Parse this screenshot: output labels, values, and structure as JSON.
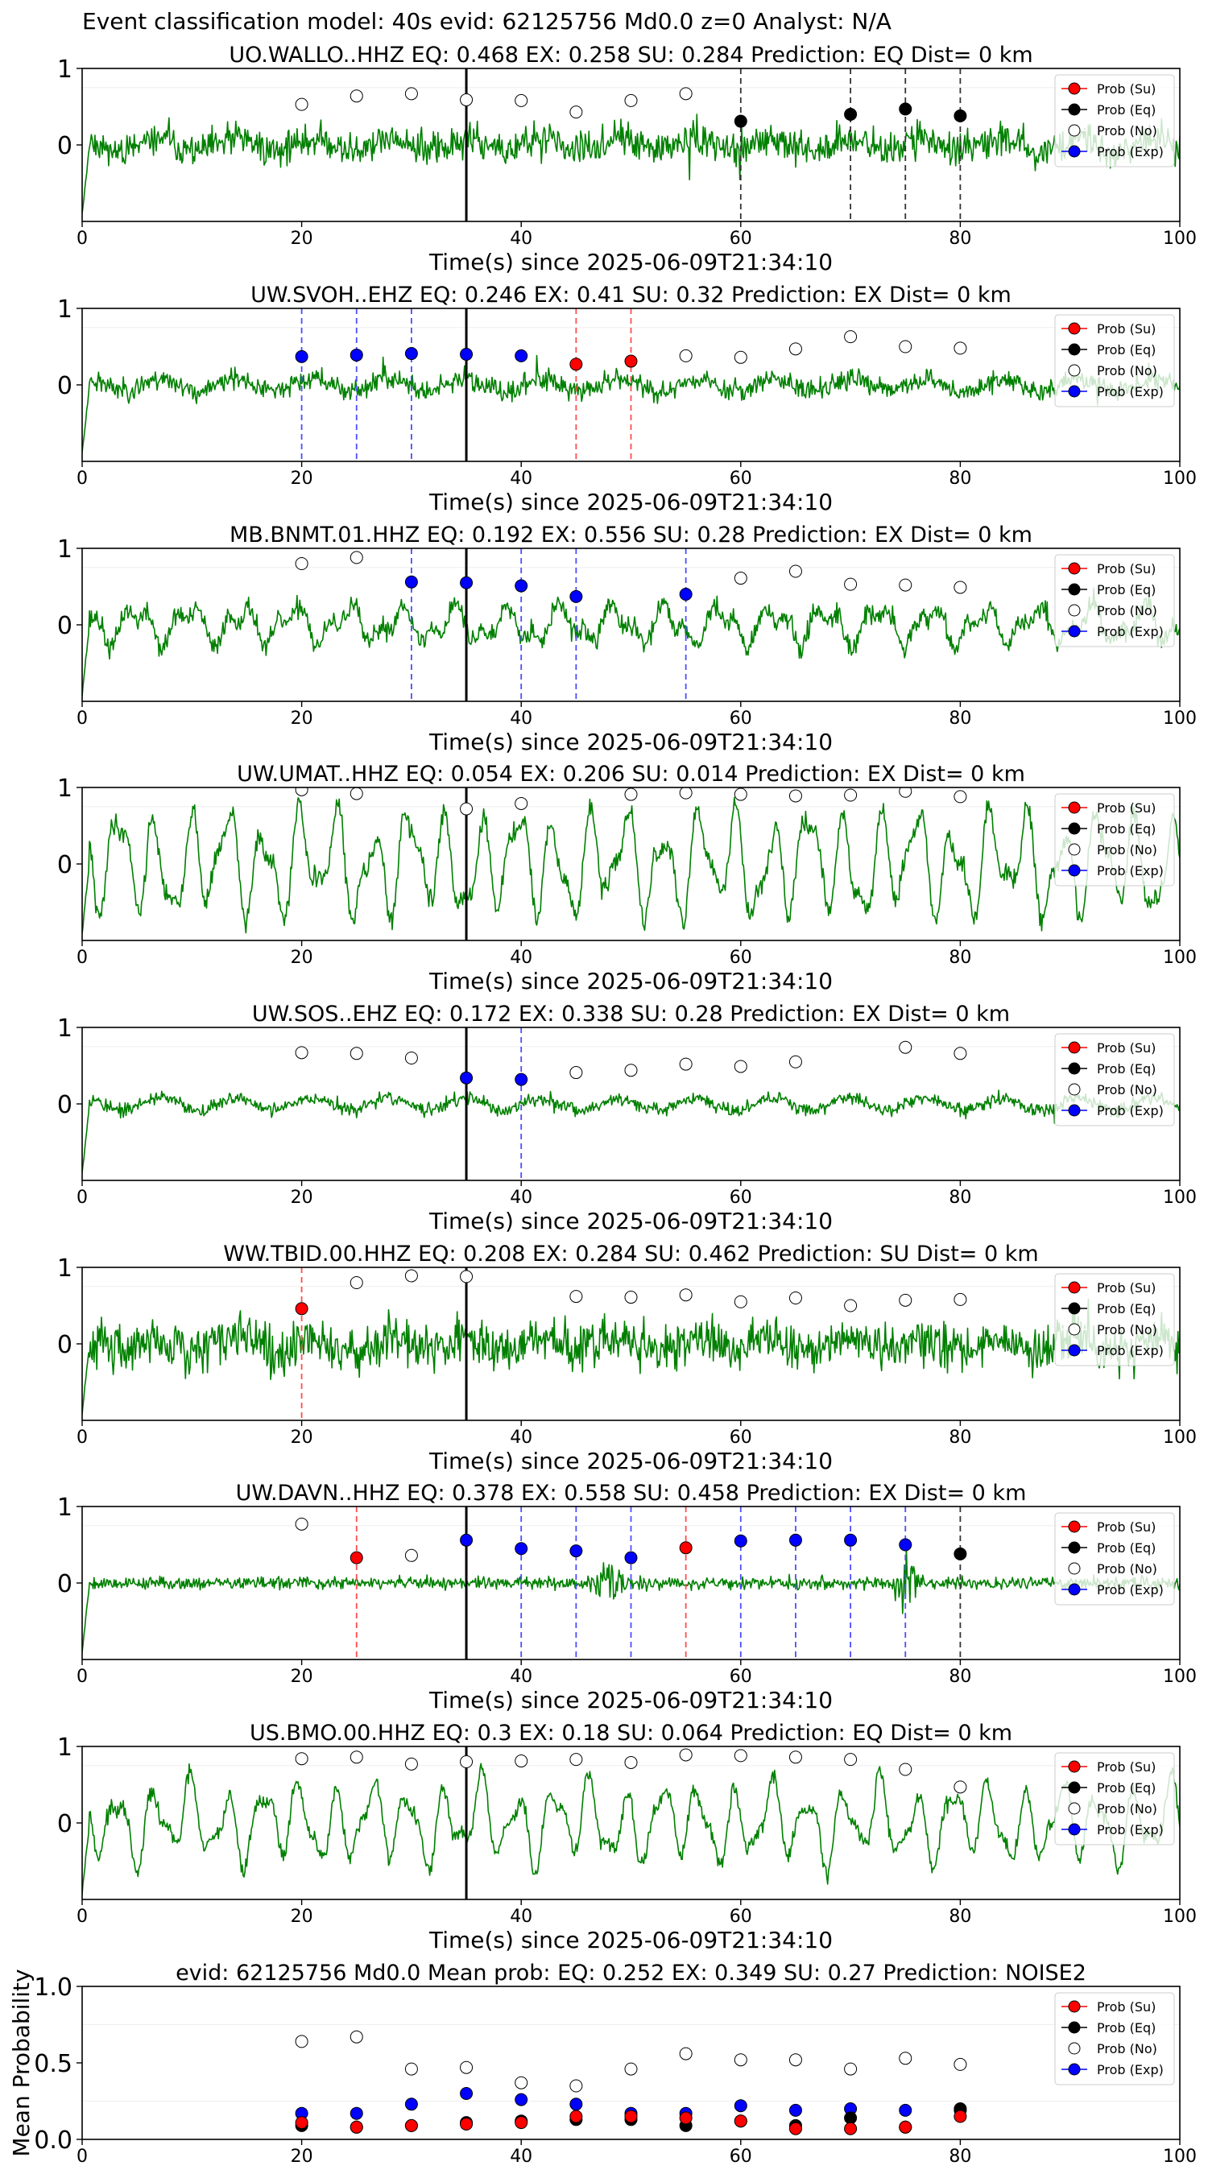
{
  "suptitle": "Event classification model: 40s evid: 62125756 Md0.0 z=0 Analyst: N/A",
  "colors": {
    "waveform": "#008000",
    "su": "#ff0000",
    "eq": "#000000",
    "no": "#ffffff",
    "exp": "#0000ff",
    "su_line": "#ff4d4d",
    "eq_line": "#333333",
    "exp_line": "#4d4dff",
    "pick_line": "#000000"
  },
  "legend_labels": [
    "Prob (Su)",
    "Prob (Eq)",
    "Prob (No)",
    "Prob (Exp)"
  ],
  "chart_data": [
    {
      "type": "scatter",
      "title": "UO.WALLO..HHZ   EQ: 0.468  EX: 0.258  SU: 0.284   Prediction: EQ    Dist= 0 km",
      "xlabel": "Time(s) since 2025-06-09T21:34:10",
      "ylabel": "",
      "xlim": [
        0,
        100
      ],
      "ylim": [
        -1,
        1
      ],
      "xticks": [
        "0",
        "20",
        "40",
        "60",
        "80",
        "100"
      ],
      "yticks": [
        "0",
        "1"
      ],
      "legend_position": "right",
      "pick_time": 35,
      "waveform": {
        "style": "noisy",
        "amplitude": 0.33,
        "seed": 11
      },
      "series": [
        {
          "key": "no",
          "x": [
            20,
            25,
            30,
            35,
            40,
            45,
            50,
            55
          ],
          "y": [
            0.53,
            0.64,
            0.67,
            0.59,
            0.58,
            0.43,
            0.58,
            0.67
          ]
        },
        {
          "key": "eq",
          "x": [
            60,
            70,
            75,
            80
          ],
          "y": [
            0.31,
            0.4,
            0.47,
            0.38
          ]
        }
      ],
      "vlines": [
        {
          "key": "eq",
          "x": [
            60,
            70,
            75,
            80
          ]
        }
      ]
    },
    {
      "type": "scatter",
      "title": "UW.SVOH..EHZ   EQ: 0.246  EX: 0.41  SU: 0.32   Prediction: EX    Dist= 0 km",
      "xlabel": "Time(s) since 2025-06-09T21:34:10",
      "ylabel": "",
      "xlim": [
        0,
        100
      ],
      "ylim": [
        -1,
        1
      ],
      "xticks": [
        "0",
        "20",
        "40",
        "60",
        "80",
        "100"
      ],
      "yticks": [
        "0",
        "1"
      ],
      "legend_position": "right",
      "pick_time": 35,
      "waveform": {
        "style": "noisy",
        "amplitude": 0.2,
        "seed": 23
      },
      "series": [
        {
          "key": "exp",
          "x": [
            20,
            25,
            30,
            35,
            40
          ],
          "y": [
            0.37,
            0.39,
            0.41,
            0.4,
            0.38
          ]
        },
        {
          "key": "su",
          "x": [
            45,
            50
          ],
          "y": [
            0.27,
            0.31
          ]
        },
        {
          "key": "no",
          "x": [
            55,
            60,
            65,
            70,
            75,
            80
          ],
          "y": [
            0.38,
            0.36,
            0.47,
            0.63,
            0.5,
            0.48
          ]
        }
      ],
      "vlines": [
        {
          "key": "exp",
          "x": [
            20,
            25,
            30
          ]
        },
        {
          "key": "su",
          "x": [
            45,
            50
          ]
        }
      ]
    },
    {
      "type": "scatter",
      "title": "MB.BNMT.01.HHZ   EQ: 0.192  EX: 0.556  SU: 0.28   Prediction: EX    Dist= 0 km",
      "xlabel": "Time(s) since 2025-06-09T21:34:10",
      "ylabel": "",
      "xlim": [
        0,
        100
      ],
      "ylim": [
        -1,
        1
      ],
      "xticks": [
        "0",
        "20",
        "40",
        "60",
        "80",
        "100"
      ],
      "yticks": [
        "0",
        "1"
      ],
      "legend_position": "right",
      "pick_time": 35,
      "waveform": {
        "style": "mixed",
        "amplitude": 0.35,
        "seed": 37
      },
      "series": [
        {
          "key": "no",
          "x": [
            20,
            25,
            60,
            65,
            70,
            75,
            80
          ],
          "y": [
            0.8,
            0.88,
            0.61,
            0.7,
            0.53,
            0.52,
            0.49
          ]
        },
        {
          "key": "exp",
          "x": [
            30,
            35,
            40,
            45,
            55
          ],
          "y": [
            0.56,
            0.55,
            0.51,
            0.37,
            0.4
          ]
        }
      ],
      "vlines": [
        {
          "key": "exp",
          "x": [
            30,
            40,
            45,
            55
          ]
        }
      ]
    },
    {
      "type": "scatter",
      "title": "UW.UMAT..HHZ   EQ: 0.054  EX: 0.206  SU: 0.014   Prediction: EX    Dist= 0 km",
      "xlabel": "Time(s) since 2025-06-09T21:34:10",
      "ylabel": "",
      "xlim": [
        0,
        100
      ],
      "ylim": [
        -1,
        1
      ],
      "xticks": [
        "0",
        "20",
        "40",
        "60",
        "80",
        "100"
      ],
      "yticks": [
        "0",
        "1"
      ],
      "legend_position": "right",
      "pick_time": 35,
      "waveform": {
        "style": "ocean",
        "amplitude": 0.8,
        "seed": 41
      },
      "series": [
        {
          "key": "no",
          "x": [
            20,
            25,
            35,
            40,
            50,
            55,
            60,
            65,
            70,
            75,
            80
          ],
          "y": [
            0.97,
            0.92,
            0.72,
            0.79,
            0.91,
            0.93,
            0.91,
            0.89,
            0.9,
            0.95,
            0.88
          ]
        }
      ],
      "vlines": []
    },
    {
      "type": "scatter",
      "title": "UW.SOS..EHZ   EQ: 0.172  EX: 0.338  SU: 0.28   Prediction: EX    Dist= 0 km",
      "xlabel": "Time(s) since 2025-06-09T21:34:10",
      "ylabel": "",
      "xlim": [
        0,
        100
      ],
      "ylim": [
        -1,
        1
      ],
      "xticks": [
        "0",
        "20",
        "40",
        "60",
        "80",
        "100"
      ],
      "yticks": [
        "0",
        "1"
      ],
      "legend_position": "right",
      "pick_time": 35,
      "waveform": {
        "style": "noisy",
        "amplitude": 0.13,
        "seed": 53
      },
      "series": [
        {
          "key": "no",
          "x": [
            20,
            25,
            30,
            45,
            50,
            55,
            60,
            65,
            75,
            80
          ],
          "y": [
            0.67,
            0.66,
            0.6,
            0.41,
            0.44,
            0.52,
            0.49,
            0.55,
            0.74,
            0.66
          ]
        },
        {
          "key": "exp",
          "x": [
            35,
            40
          ],
          "y": [
            0.34,
            0.32
          ]
        }
      ],
      "vlines": [
        {
          "key": "exp",
          "x": [
            40
          ]
        }
      ]
    },
    {
      "type": "scatter",
      "title": "WW.TBID.00.HHZ   EQ: 0.208  EX: 0.284  SU: 0.462   Prediction: SU    Dist= 0 km",
      "xlabel": "Time(s) since 2025-06-09T21:34:10",
      "ylabel": "",
      "xlim": [
        0,
        100
      ],
      "ylim": [
        -1,
        1
      ],
      "xticks": [
        "0",
        "20",
        "40",
        "60",
        "80",
        "100"
      ],
      "yticks": [
        "0",
        "1"
      ],
      "legend_position": "right",
      "pick_time": 35,
      "waveform": {
        "style": "noisy",
        "amplitude": 0.45,
        "seed": 67
      },
      "series": [
        {
          "key": "su",
          "x": [
            20
          ],
          "y": [
            0.46
          ]
        },
        {
          "key": "no",
          "x": [
            25,
            30,
            35,
            45,
            50,
            55,
            60,
            65,
            70,
            75,
            80
          ],
          "y": [
            0.8,
            0.89,
            0.88,
            0.62,
            0.61,
            0.64,
            0.55,
            0.6,
            0.5,
            0.57,
            0.58
          ]
        }
      ],
      "vlines": [
        {
          "key": "su",
          "x": [
            20
          ]
        }
      ]
    },
    {
      "type": "scatter",
      "title": "UW.DAVN..HHZ   EQ: 0.378  EX: 0.558  SU: 0.458   Prediction: EX    Dist= 0 km",
      "xlabel": "Time(s) since 2025-06-09T21:34:10",
      "ylabel": "",
      "xlim": [
        0,
        100
      ],
      "ylim": [
        -1,
        1
      ],
      "xticks": [
        "0",
        "20",
        "40",
        "60",
        "80",
        "100"
      ],
      "yticks": [
        "0",
        "1"
      ],
      "legend_position": "right",
      "pick_time": 35,
      "waveform": {
        "style": "bursts",
        "amplitude": 0.12,
        "seed": 79
      },
      "series": [
        {
          "key": "no",
          "x": [
            20,
            30
          ],
          "y": [
            0.77,
            0.36
          ]
        },
        {
          "key": "su",
          "x": [
            25,
            55
          ],
          "y": [
            0.33,
            0.46
          ]
        },
        {
          "key": "exp",
          "x": [
            35,
            40,
            45,
            50,
            60,
            65,
            70,
            75
          ],
          "y": [
            0.56,
            0.45,
            0.42,
            0.33,
            0.55,
            0.56,
            0.56,
            0.5
          ]
        },
        {
          "key": "eq",
          "x": [
            80
          ],
          "y": [
            0.38
          ]
        }
      ],
      "vlines": [
        {
          "key": "su",
          "x": [
            25,
            55
          ]
        },
        {
          "key": "exp",
          "x": [
            40,
            45,
            50,
            60,
            65,
            70,
            75
          ]
        },
        {
          "key": "eq",
          "x": [
            80
          ]
        }
      ]
    },
    {
      "type": "scatter",
      "title": "US.BMO.00.HHZ   EQ: 0.3  EX: 0.18  SU: 0.064   Prediction: EQ    Dist= 0 km",
      "xlabel": "Time(s) since 2025-06-09T21:34:10",
      "ylabel": "",
      "xlim": [
        0,
        100
      ],
      "ylim": [
        -1,
        1
      ],
      "xticks": [
        "0",
        "20",
        "40",
        "60",
        "80",
        "100"
      ],
      "yticks": [
        "0",
        "1"
      ],
      "legend_position": "right",
      "pick_time": 35,
      "waveform": {
        "style": "ocean",
        "amplitude": 0.6,
        "seed": 97
      },
      "series": [
        {
          "key": "no",
          "x": [
            20,
            25,
            30,
            35,
            40,
            45,
            50,
            55,
            60,
            65,
            70,
            75,
            80
          ],
          "y": [
            0.84,
            0.86,
            0.77,
            0.8,
            0.81,
            0.83,
            0.79,
            0.89,
            0.88,
            0.86,
            0.83,
            0.7,
            0.47
          ]
        }
      ],
      "vlines": []
    },
    {
      "type": "scatter",
      "title": "evid: 62125756  Md0.0   Mean prob:   EQ: 0.252  EX: 0.349  SU: 0.27   Prediction: NOISE2",
      "xlabel": "",
      "ylabel": "Mean Probability",
      "xlim": [
        0,
        100
      ],
      "ylim": [
        0,
        1
      ],
      "xticks": [
        "0",
        "20",
        "40",
        "60",
        "80",
        "100"
      ],
      "yticks": [
        "0.0",
        "0.5",
        "1.0"
      ],
      "legend_position": "right",
      "series": [
        {
          "key": "no",
          "x": [
            20,
            25,
            30,
            35,
            40,
            45,
            50,
            55,
            60,
            65,
            70,
            75,
            80
          ],
          "y": [
            0.64,
            0.67,
            0.46,
            0.47,
            0.37,
            0.35,
            0.46,
            0.56,
            0.52,
            0.52,
            0.46,
            0.53,
            0.49
          ]
        },
        {
          "key": "exp",
          "x": [
            20,
            25,
            30,
            35,
            40,
            45,
            50,
            55,
            60,
            65,
            70,
            75,
            80
          ],
          "y": [
            0.17,
            0.17,
            0.23,
            0.3,
            0.26,
            0.23,
            0.17,
            0.17,
            0.22,
            0.19,
            0.2,
            0.19,
            0.19
          ]
        },
        {
          "key": "eq",
          "x": [
            20,
            25,
            30,
            35,
            40,
            45,
            50,
            55,
            60,
            65,
            70,
            75,
            80
          ],
          "y": [
            0.09,
            0.08,
            0.09,
            0.11,
            0.12,
            0.13,
            0.13,
            0.09,
            0.12,
            0.09,
            0.14,
            0.08,
            0.2
          ]
        },
        {
          "key": "su",
          "x": [
            20,
            25,
            30,
            35,
            40,
            45,
            50,
            55,
            60,
            65,
            70,
            75,
            80
          ],
          "y": [
            0.11,
            0.08,
            0.09,
            0.1,
            0.11,
            0.15,
            0.15,
            0.14,
            0.12,
            0.07,
            0.07,
            0.08,
            0.15
          ]
        }
      ],
      "vlines": []
    }
  ]
}
